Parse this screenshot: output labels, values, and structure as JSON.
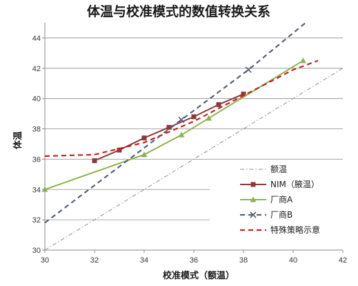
{
  "chart_data": {
    "type": "line",
    "title": "体温与校准模式的数值转换关系",
    "xlabel": "校准模式（额温）",
    "ylabel": "体温",
    "xlim": [
      30,
      42
    ],
    "ylim": [
      30,
      45
    ],
    "x_ticks": [
      "30",
      "32",
      "34",
      "36",
      "38",
      "40",
      "42"
    ],
    "y_ticks": [
      "30",
      "32",
      "34",
      "36",
      "38",
      "40",
      "42",
      "44"
    ],
    "grid": "horizontal",
    "legend_position": "bottom-right",
    "series": [
      {
        "name": "额温",
        "color": "#8c8ca8",
        "style": "dash-dot",
        "marker": "none",
        "points": [
          [
            30,
            30
          ],
          [
            42,
            42
          ]
        ]
      },
      {
        "name": "NIM（腋温）",
        "color": "#8b3a3a",
        "style": "solid",
        "marker": "square",
        "points": [
          [
            32,
            35.9
          ],
          [
            33,
            36.6
          ],
          [
            34,
            37.4
          ],
          [
            35,
            38.1
          ],
          [
            36,
            38.8
          ],
          [
            37,
            39.6
          ],
          [
            38,
            40.3
          ]
        ]
      },
      {
        "name": "厂商A",
        "color": "#8db14f",
        "style": "solid",
        "marker": "triangle",
        "points": [
          [
            30,
            34.0
          ],
          [
            34,
            36.3
          ],
          [
            35.5,
            37.6
          ],
          [
            36.6,
            38.7
          ],
          [
            40.4,
            42.5
          ]
        ]
      },
      {
        "name": "厂商B",
        "color": "#555f75",
        "style": "dashed",
        "marker": "x",
        "points": [
          [
            30,
            31.8
          ],
          [
            35.5,
            38.6
          ],
          [
            38.2,
            41.9
          ],
          [
            40.5,
            45.0
          ]
        ]
      },
      {
        "name": "特殊策略示意",
        "color": "#c42020",
        "style": "dashed",
        "marker": "none",
        "points": [
          [
            30,
            36.2
          ],
          [
            32,
            36.3
          ],
          [
            34,
            37.1
          ],
          [
            36,
            38.5
          ],
          [
            38,
            40.2
          ],
          [
            40,
            41.9
          ],
          [
            41,
            42.5
          ]
        ]
      }
    ]
  }
}
